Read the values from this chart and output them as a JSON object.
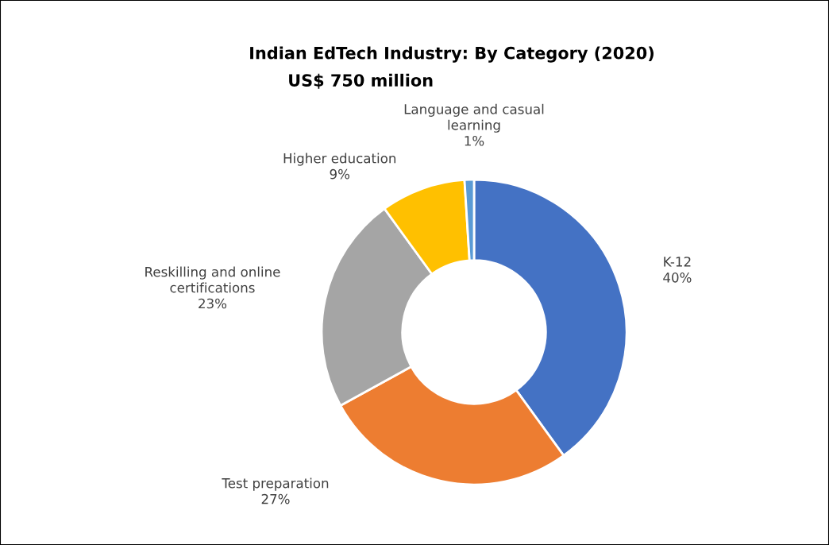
{
  "chart_data": {
    "type": "donut",
    "title": "Indian EdTech Industry: By Category (2020)",
    "subtitle": "US$ 750 million",
    "categories": [
      "K-12",
      "Test preparation",
      "Reskilling and online certifications",
      "Higher education",
      "Language and casual learning"
    ],
    "values": [
      40,
      27,
      23,
      9,
      1
    ],
    "colors": [
      "#4472c4",
      "#ed7d31",
      "#a5a5a5",
      "#ffc000",
      "#5b9bd5"
    ],
    "value_labels": [
      "40%",
      "27%",
      "23%",
      "9%",
      "1%"
    ],
    "legend": false
  }
}
